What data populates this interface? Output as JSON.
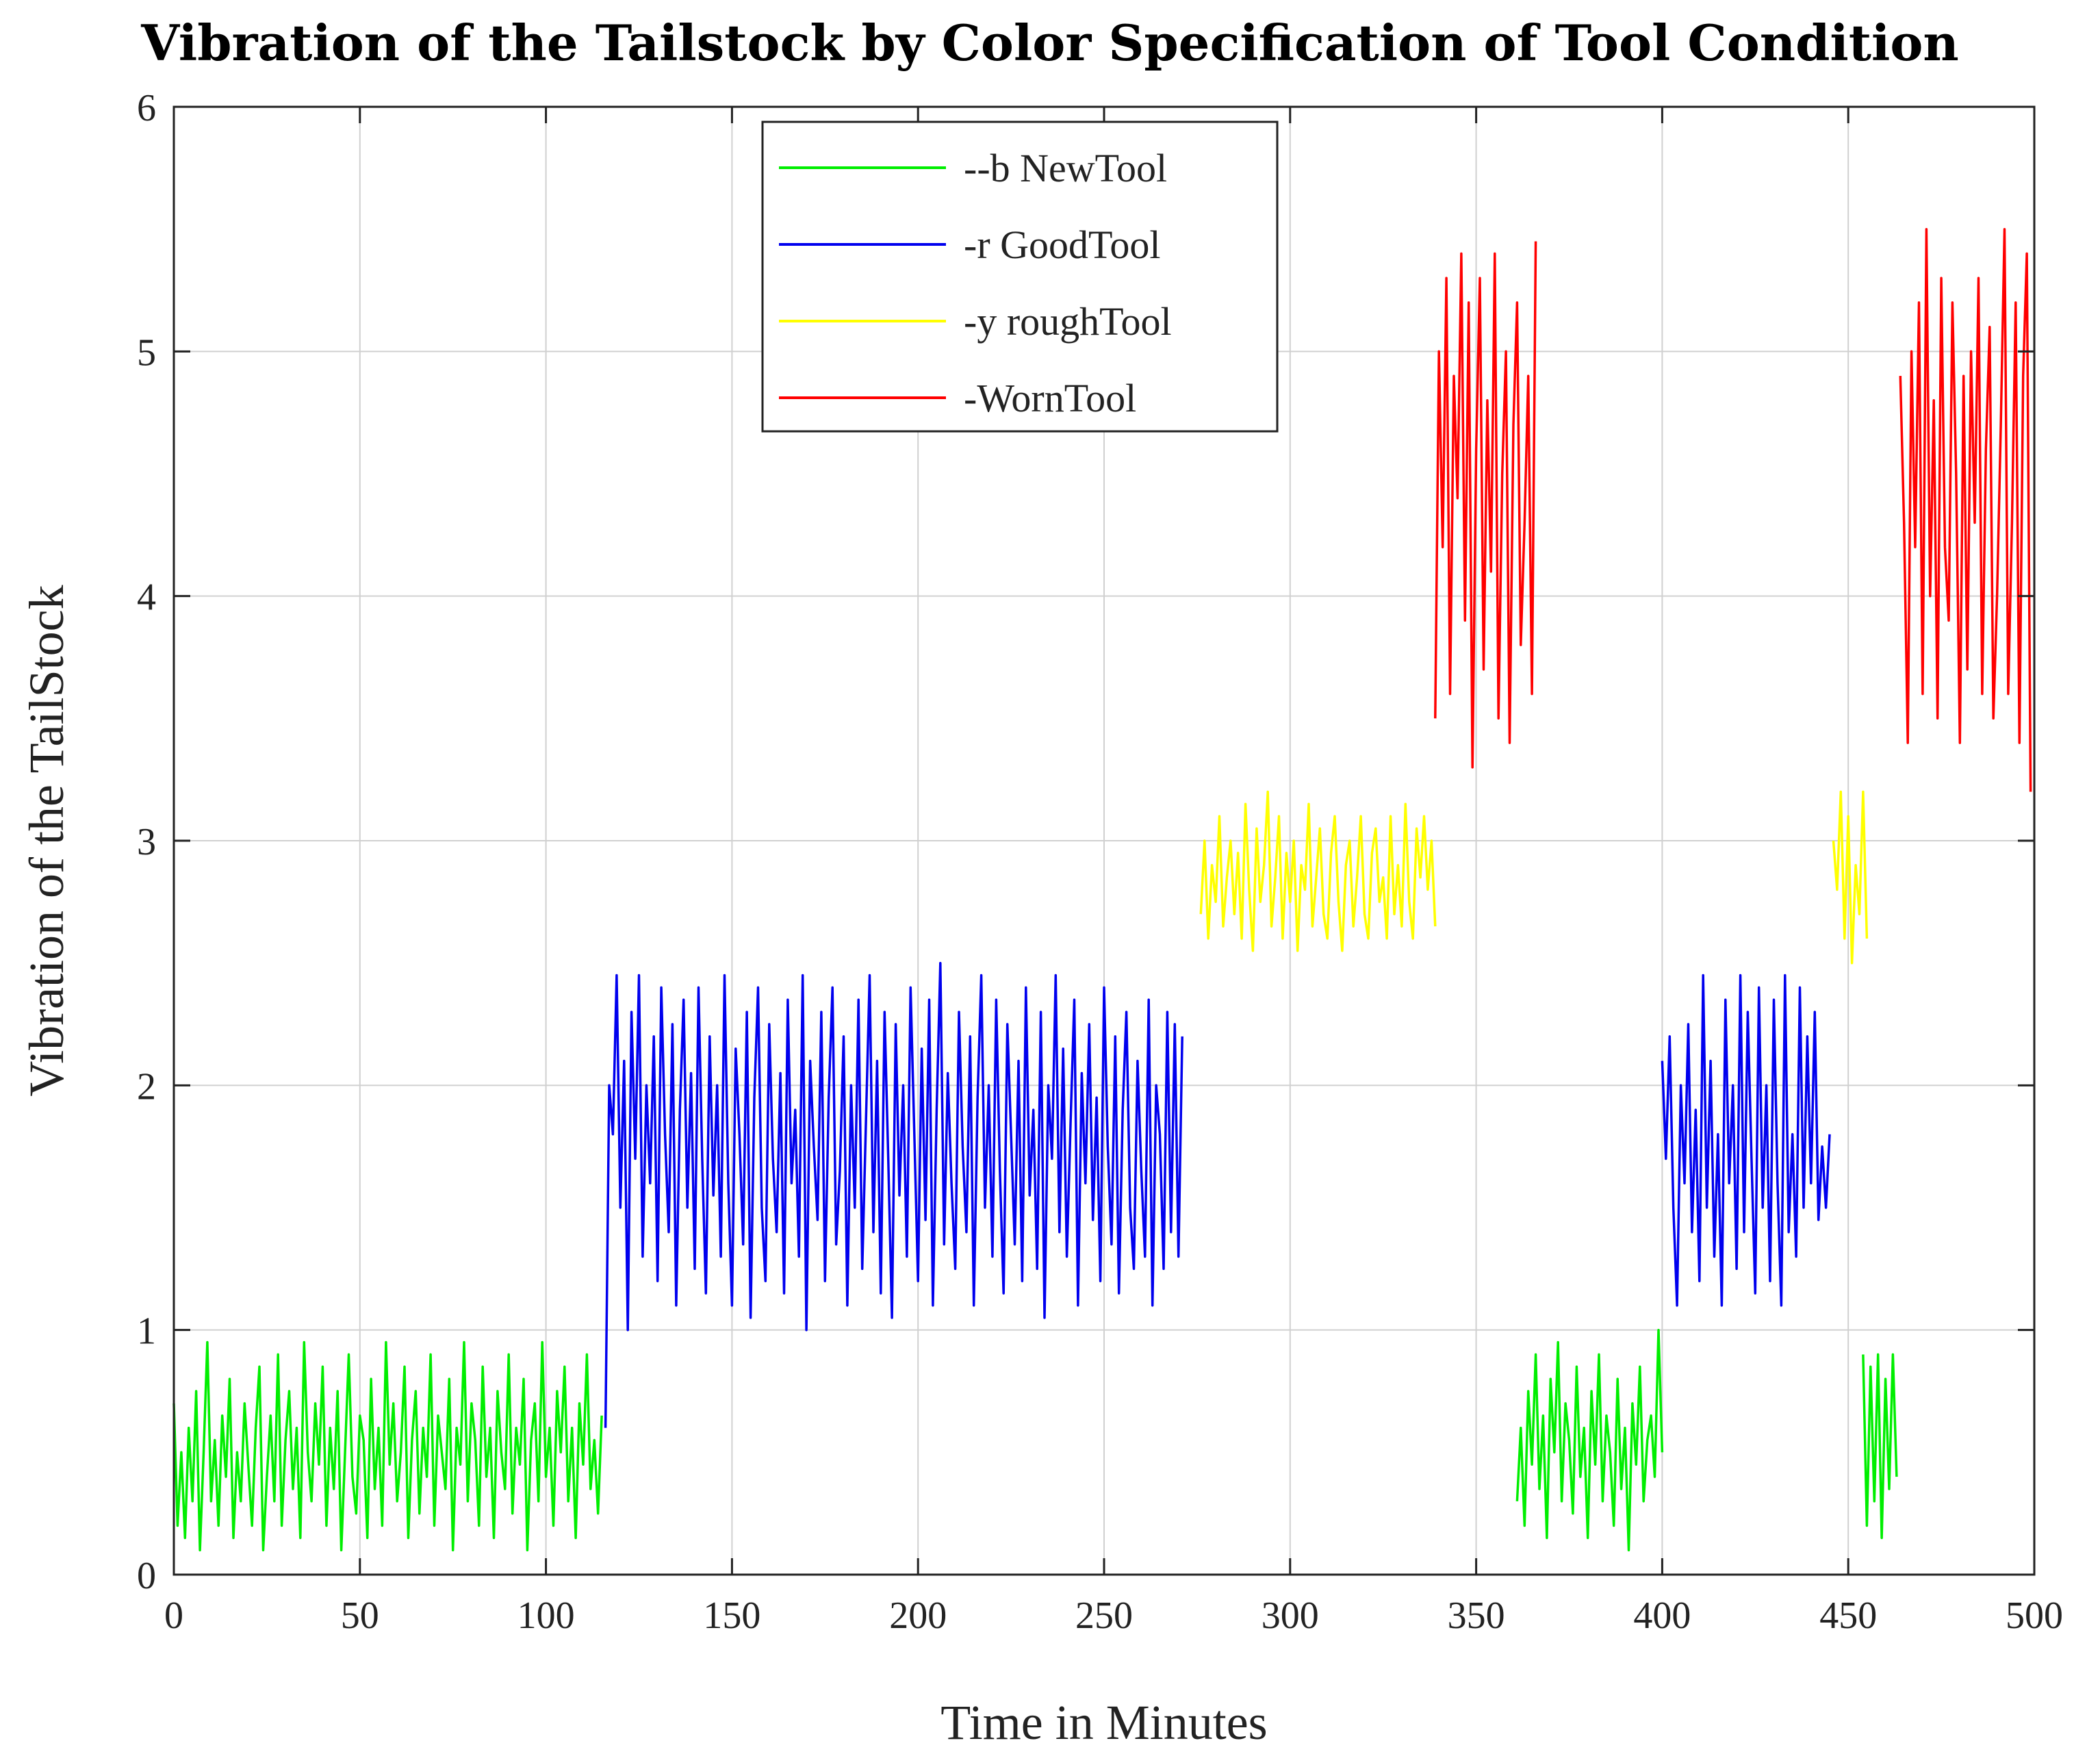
{
  "chart_data": {
    "type": "line",
    "title": "Vibration of the Tailstock by Color Specification of Tool Condition",
    "xlabel": "Time in Minutes",
    "ylabel": "Vibration of the TailStock",
    "xlim": [
      0,
      500
    ],
    "ylim": [
      0,
      6
    ],
    "xticks": [
      0,
      50,
      100,
      150,
      200,
      250,
      300,
      350,
      400,
      450,
      500
    ],
    "yticks": [
      0,
      1,
      2,
      3,
      4,
      5,
      6
    ],
    "grid": true,
    "legend_position": "top-center",
    "series": [
      {
        "name": "--b NewTool",
        "color": "#00ee00",
        "segments": [
          {
            "x_start": 0,
            "x_step": 1,
            "values": [
              0.7,
              0.2,
              0.5,
              0.15,
              0.6,
              0.3,
              0.75,
              0.1,
              0.5,
              0.95,
              0.3,
              0.55,
              0.2,
              0.65,
              0.4,
              0.8,
              0.15,
              0.5,
              0.3,
              0.7,
              0.45,
              0.2,
              0.6,
              0.85,
              0.1,
              0.4,
              0.65,
              0.3,
              0.9,
              0.2,
              0.55,
              0.75,
              0.35,
              0.6,
              0.15,
              0.95,
              0.5,
              0.3,
              0.7,
              0.45,
              0.85,
              0.2,
              0.6,
              0.35,
              0.75,
              0.1,
              0.5,
              0.9,
              0.4,
              0.25,
              0.65,
              0.55,
              0.15,
              0.8,
              0.35,
              0.6,
              0.2,
              0.95,
              0.45,
              0.7,
              0.3,
              0.5,
              0.85,
              0.15,
              0.55,
              0.75,
              0.25,
              0.6,
              0.4,
              0.9,
              0.2,
              0.65,
              0.5,
              0.35,
              0.8,
              0.1,
              0.6,
              0.45,
              0.95,
              0.3,
              0.7,
              0.55,
              0.2,
              0.85,
              0.4,
              0.6,
              0.15,
              0.75,
              0.5,
              0.35,
              0.9,
              0.25,
              0.6,
              0.45,
              0.8,
              0.1,
              0.55,
              0.7,
              0.3,
              0.95,
              0.4,
              0.6,
              0.2,
              0.75,
              0.5,
              0.85,
              0.3,
              0.6,
              0.15,
              0.7,
              0.45,
              0.9,
              0.35,
              0.55,
              0.25,
              0.65
            ]
          },
          {
            "x_start": 361,
            "x_step": 1,
            "values": [
              0.3,
              0.6,
              0.2,
              0.75,
              0.45,
              0.9,
              0.35,
              0.65,
              0.15,
              0.8,
              0.5,
              0.95,
              0.3,
              0.7,
              0.55,
              0.25,
              0.85,
              0.4,
              0.6,
              0.15,
              0.75,
              0.45,
              0.9,
              0.3,
              0.65,
              0.5,
              0.2,
              0.8,
              0.35,
              0.6,
              0.1,
              0.7,
              0.45,
              0.85,
              0.3,
              0.55,
              0.65,
              0.4,
              1.0,
              0.5
            ]
          },
          {
            "x_start": 454,
            "x_step": 1,
            "values": [
              0.9,
              0.2,
              0.85,
              0.3,
              0.9,
              0.15,
              0.8,
              0.35,
              0.9,
              0.4
            ]
          }
        ]
      },
      {
        "name": "-r GoodTool",
        "color": "#0000ee",
        "segments": [
          {
            "x_start": 116,
            "x_step": 1,
            "values": [
              0.6,
              2.0,
              1.8,
              2.45,
              1.5,
              2.1,
              1.0,
              2.3,
              1.7,
              2.45,
              1.3,
              2.0,
              1.6,
              2.2,
              1.2,
              2.4,
              1.8,
              1.4,
              2.25,
              1.1,
              1.9,
              2.35,
              1.5,
              2.05,
              1.25,
              2.4,
              1.7,
              1.15,
              2.2,
              1.55,
              2.0,
              1.3,
              2.45,
              1.6,
              1.1,
              2.15,
              1.8,
              1.35,
              2.3,
              1.05,
              1.95,
              2.4,
              1.5,
              1.2,
              2.25,
              1.7,
              1.4,
              2.05,
              1.15,
              2.35,
              1.6,
              1.9,
              1.3,
              2.45,
              1.0,
              2.1,
              1.75,
              1.45,
              2.3,
              1.2,
              1.95,
              2.4,
              1.35,
              1.65,
              2.2,
              1.1,
              2.0,
              1.5,
              2.35,
              1.25,
              1.85,
              2.45,
              1.4,
              2.1,
              1.15,
              2.3,
              1.7,
              1.05,
              2.25,
              1.55,
              2.0,
              1.3,
              2.4,
              1.8,
              1.2,
              2.15,
              1.45,
              2.35,
              1.1,
              1.9,
              2.5,
              1.35,
              2.05,
              1.6,
              1.25,
              2.3,
              1.75,
              1.4,
              2.2,
              1.1,
              1.95,
              2.45,
              1.5,
              2.0,
              1.3,
              2.35,
              1.65,
              1.15,
              2.25,
              1.8,
              1.35,
              2.1,
              1.2,
              2.4,
              1.55,
              1.9,
              1.25,
              2.3,
              1.05,
              2.0,
              1.7,
              2.45,
              1.4,
              2.15,
              1.3,
              1.85,
              2.35,
              1.1,
              2.05,
              1.6,
              2.25,
              1.45,
              1.95,
              1.2,
              2.4,
              1.75,
              1.35,
              2.2,
              1.15,
              1.9,
              2.3,
              1.5,
              1.25,
              2.1,
              1.65,
              1.3,
              2.35,
              1.1,
              2.0,
              1.8,
              1.25,
              2.3,
              1.4,
              2.25,
              1.3,
              2.2
            ]
          },
          {
            "x_start": 400,
            "x_step": 1,
            "values": [
              2.1,
              1.7,
              2.2,
              1.5,
              1.1,
              2.0,
              1.6,
              2.25,
              1.4,
              1.9,
              1.2,
              2.45,
              1.5,
              2.1,
              1.3,
              1.8,
              1.1,
              2.35,
              1.6,
              2.0,
              1.25,
              2.45,
              1.4,
              2.3,
              1.7,
              1.15,
              2.4,
              1.5,
              2.0,
              1.2,
              2.35,
              1.6,
              1.1,
              2.45,
              1.4,
              1.8,
              1.3,
              2.4,
              1.5,
              2.2,
              1.6,
              2.3,
              1.45,
              1.75,
              1.5,
              1.8
            ]
          }
        ]
      },
      {
        "name": "-y roughTool",
        "color": "#ffff00",
        "segments": [
          {
            "x_start": 276,
            "x_step": 1,
            "values": [
              2.7,
              3.0,
              2.6,
              2.9,
              2.75,
              3.1,
              2.65,
              2.85,
              3.0,
              2.7,
              2.95,
              2.6,
              3.15,
              2.8,
              2.55,
              3.05,
              2.75,
              2.9,
              3.2,
              2.65,
              2.85,
              3.1,
              2.6,
              2.95,
              2.75,
              3.0,
              2.55,
              2.9,
              2.8,
              3.15,
              2.65,
              2.85,
              3.05,
              2.7,
              2.6,
              2.95,
              3.1,
              2.75,
              2.55,
              2.9,
              3.0,
              2.65,
              2.85,
              3.1,
              2.7,
              2.6,
              2.95,
              3.05,
              2.75,
              2.85,
              2.6,
              3.1,
              2.7,
              2.9,
              2.65,
              3.15,
              2.75,
              2.6,
              3.05,
              2.85,
              3.1,
              2.8,
              3.0,
              2.65
            ]
          },
          {
            "x_start": 446,
            "x_step": 1,
            "values": [
              3.0,
              2.8,
              3.2,
              2.6,
              3.1,
              2.5,
              2.9,
              2.7,
              3.2,
              2.6
            ]
          }
        ]
      },
      {
        "name": "-WornTool",
        "color": "#ff0000",
        "segments": [
          {
            "x_start": 339,
            "x_step": 1,
            "values": [
              3.5,
              5.0,
              4.2,
              5.3,
              3.6,
              4.9,
              4.4,
              5.4,
              3.9,
              5.2,
              3.3,
              4.6,
              5.3,
              3.7,
              4.8,
              4.1,
              5.4,
              3.5,
              4.5,
              5.0,
              3.4,
              4.7,
              5.2,
              3.8,
              4.3,
              4.9,
              3.6,
              5.45
            ]
          },
          {
            "x_start": 464,
            "x_step": 1,
            "values": [
              4.9,
              4.3,
              3.4,
              5.0,
              4.2,
              5.2,
              3.6,
              5.5,
              4.0,
              4.8,
              3.5,
              5.3,
              4.2,
              3.9,
              5.2,
              4.5,
              3.4,
              4.9,
              3.7,
              5.0,
              4.3,
              5.3,
              3.6,
              4.6,
              5.1,
              3.5,
              4.0,
              4.7,
              5.5,
              3.6,
              4.3,
              5.2,
              3.4,
              4.9,
              5.4,
              3.2
            ]
          }
        ]
      }
    ]
  }
}
